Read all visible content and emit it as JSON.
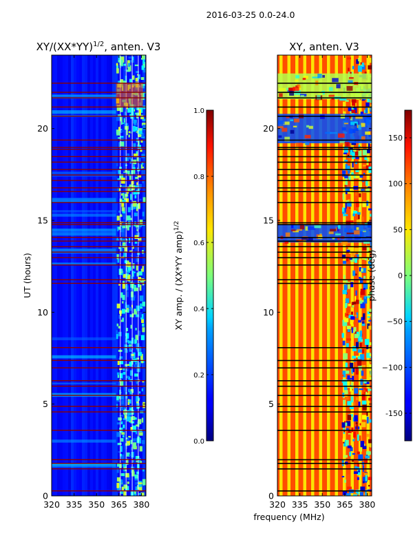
{
  "chart_data": [
    {
      "type": "heatmap",
      "suptitle": "2016-03-25 0.0-24.0",
      "title_prefix": "XY/(XX*YY)",
      "title_exponent": "1/2",
      "title_suffix": ", anten. V3",
      "xlabel": "",
      "ylabel": "UT (hours)",
      "xlim": [
        320,
        383
      ],
      "ylim": [
        0,
        24
      ],
      "xticks": [
        "320",
        "335",
        "350",
        "365",
        "380"
      ],
      "yticks": [
        "0",
        "5",
        "10",
        "15",
        "20"
      ],
      "colorbar": {
        "label_prefix": "XY amp. / (XX*YY amp)",
        "label_exponent": "1/2",
        "range": [
          0.0,
          1.0
        ],
        "ticks": [
          "0.0",
          "0.2",
          "0.4",
          "0.6",
          "0.8",
          "1.0"
        ],
        "colormap": "jet"
      },
      "flagged_rows_hours": [
        0.3,
        1.5,
        1.8,
        2.0,
        3.6,
        4.6,
        4.9,
        5.5,
        6.0,
        6.3,
        7.0,
        7.4,
        8.1,
        11.6,
        11.8,
        12.6,
        13.0,
        13.3,
        13.6,
        13.9,
        14.1,
        14.8,
        14.9,
        16.0,
        16.6,
        16.8,
        17.2,
        17.5,
        17.8,
        18.2,
        18.5,
        18.9,
        19.0,
        19.4,
        20.7,
        21.2,
        21.7,
        22.0,
        22.5
      ],
      "rfi_band_mhz": [
        363,
        381
      ]
    },
    {
      "type": "heatmap",
      "title": "XY, anten. V3",
      "xlabel": "frequency (MHz)",
      "ylabel": "",
      "xlim": [
        320,
        383
      ],
      "ylim": [
        0,
        24
      ],
      "xticks": [
        "320",
        "335",
        "350",
        "365",
        "380"
      ],
      "yticks": [
        "0",
        "5",
        "10",
        "15",
        "20"
      ],
      "colorbar": {
        "label": "phase (deg)",
        "range": [
          -180,
          180
        ],
        "ticks": [
          "-150",
          "−100",
          "−50",
          "0",
          "50",
          "100",
          "150"
        ],
        "tick_values": [
          -150,
          -100,
          -50,
          0,
          50,
          100,
          150
        ],
        "colormap": "jet"
      },
      "flagged_rows_hours": [
        0.3,
        1.5,
        1.8,
        2.0,
        3.6,
        4.6,
        4.9,
        5.5,
        6.0,
        6.3,
        7.0,
        7.4,
        8.1,
        11.6,
        11.8,
        12.6,
        13.0,
        13.3,
        13.6,
        13.9,
        14.1,
        14.8,
        14.9,
        16.0,
        16.6,
        16.8,
        17.2,
        17.5,
        17.8,
        18.2,
        18.5,
        18.9,
        19.0,
        19.4,
        20.7,
        21.2,
        21.7,
        22.0,
        22.5
      ],
      "phase_bands_hours": [
        [
          13.8,
          14.8
        ],
        [
          19.2,
          20.8
        ],
        [
          21.6,
          23.0
        ]
      ]
    }
  ]
}
